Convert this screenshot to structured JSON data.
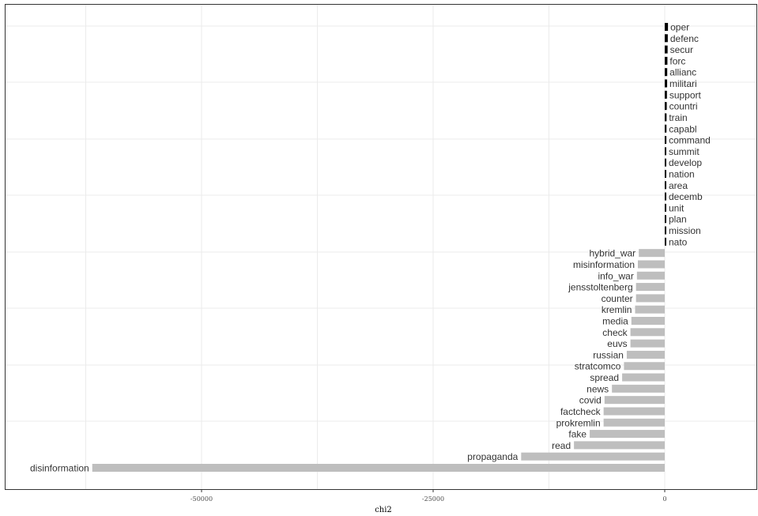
{
  "chart_data": {
    "type": "bar",
    "orientation": "horizontal",
    "xlabel": "chi2",
    "ylabel": "",
    "xlim": [
      -71000,
      10000
    ],
    "x_ticks": [
      -50000,
      -25000,
      0
    ],
    "x_tick_labels": [
      "-50000",
      "-25000",
      "0"
    ],
    "grid": true,
    "legend": "none",
    "colors": {
      "positive": "#000000",
      "negative": "#bebebe",
      "gridline": "#ebebeb",
      "panel_border": "#333333"
    },
    "categories": [
      "oper",
      "defenc",
      "secur",
      "forc",
      "allianc",
      "militari",
      "support",
      "countri",
      "train",
      "capabl",
      "command",
      "summit",
      "develop",
      "nation",
      "area",
      "decemb",
      "unit",
      "plan",
      "mission",
      "nato",
      "hybrid_war",
      "misinformation",
      "info_war",
      "jensstoltenberg",
      "counter",
      "kremlin",
      "media",
      "check",
      "euvs",
      "russian",
      "stratcomco",
      "spread",
      "news",
      "covid",
      "factcheck",
      "prokremlin",
      "fake",
      "read",
      "propaganda",
      "disinformation"
    ],
    "values": [
      350,
      330,
      310,
      290,
      270,
      260,
      240,
      220,
      200,
      190,
      180,
      170,
      160,
      150,
      140,
      130,
      120,
      110,
      100,
      90,
      -2800,
      -2900,
      -3000,
      -3100,
      -3100,
      -3200,
      -3600,
      -3700,
      -3700,
      -4100,
      -4400,
      -4600,
      -5700,
      -6500,
      -6600,
      -6600,
      -8100,
      -9800,
      -15500,
      -61800
    ]
  }
}
